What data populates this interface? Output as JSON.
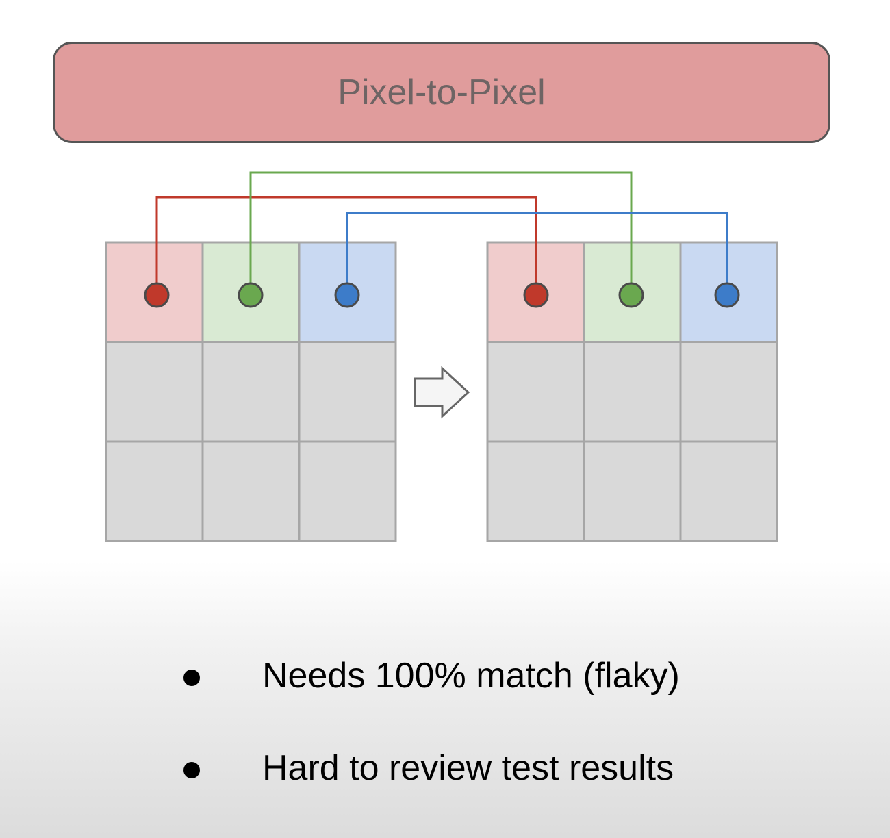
{
  "title": "Pixel-to-Pixel",
  "colors": {
    "banner_fill": "#e09c9c",
    "banner_border": "#555555",
    "red": "#c0392b",
    "green": "#6aa84f",
    "blue": "#3d7cc9",
    "red_cell": "#f0cccc",
    "green_cell": "#d9ead3",
    "blue_cell": "#c9d9f2",
    "grid_cell": "#d9d9d9",
    "grid_line": "#a6a6a6"
  },
  "grids": [
    {
      "name": "source-grid",
      "rows": 3,
      "cols": 3
    },
    {
      "name": "target-grid",
      "rows": 3,
      "cols": 3
    }
  ],
  "connections": [
    {
      "color": "red",
      "from_col": 0,
      "to_col": 0
    },
    {
      "color": "green",
      "from_col": 1,
      "to_col": 1
    },
    {
      "color": "blue",
      "from_col": 2,
      "to_col": 2
    }
  ],
  "arrow_icon": "arrow-right-icon",
  "bullets": [
    "Needs 100% match (flaky)",
    "Hard to review test results"
  ]
}
